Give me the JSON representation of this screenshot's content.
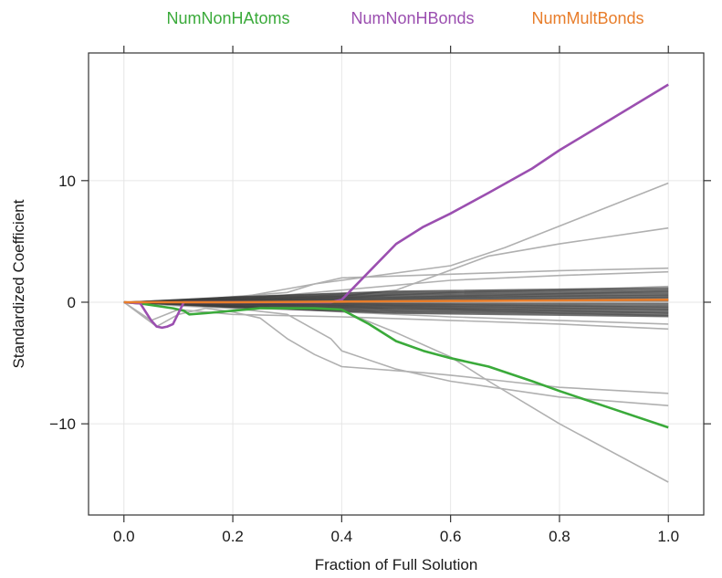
{
  "chart_data": {
    "type": "line",
    "title": "",
    "xlabel": "Fraction of Full Solution",
    "ylabel": "Standardized Coefficient",
    "xlim": [
      -0.065,
      1.065
    ],
    "ylim": [
      -17.5,
      20.5
    ],
    "xticks": [
      0.0,
      0.2,
      0.4,
      0.6,
      0.8,
      1.0
    ],
    "xtick_labels": [
      "0.0",
      "0.2",
      "0.4",
      "0.6",
      "0.8",
      "1.0"
    ],
    "yticks": [
      -10,
      0,
      10
    ],
    "ytick_labels": [
      "−10",
      "0",
      "10"
    ],
    "grid": true,
    "legend_position": "top",
    "highlighted_series": [
      {
        "name": "NumNonHAtoms",
        "color": "#3aaa3a",
        "x": [
          0.0,
          0.03,
          0.06,
          0.09,
          0.11,
          0.12,
          0.15,
          0.2,
          0.25,
          0.3,
          0.35,
          0.4,
          0.45,
          0.5,
          0.55,
          0.6,
          0.67,
          0.75,
          0.8,
          0.9,
          1.0
        ],
        "y": [
          0.0,
          -0.1,
          -0.3,
          -0.5,
          -0.7,
          -1.0,
          -0.9,
          -0.7,
          -0.5,
          -0.5,
          -0.5,
          -0.6,
          -1.8,
          -3.2,
          -4.0,
          -4.6,
          -5.3,
          -6.5,
          -7.3,
          -8.8,
          -10.3
        ]
      },
      {
        "name": "NumNonHBonds",
        "color": "#9b4fb0",
        "x": [
          0.0,
          0.03,
          0.05,
          0.06,
          0.07,
          0.08,
          0.09,
          0.11,
          0.2,
          0.3,
          0.38,
          0.4,
          0.45,
          0.5,
          0.55,
          0.6,
          0.67,
          0.75,
          0.8,
          0.9,
          1.0
        ],
        "y": [
          0.0,
          -0.1,
          -1.5,
          -2.0,
          -2.1,
          -2.0,
          -1.8,
          0.0,
          0.0,
          0.0,
          0.0,
          0.2,
          2.5,
          4.8,
          6.2,
          7.3,
          9.0,
          11.0,
          12.5,
          15.2,
          17.9
        ]
      },
      {
        "name": "NumMultBonds",
        "color": "#e87d2a",
        "x": [
          0.0,
          0.2,
          0.4,
          0.6,
          0.8,
          1.0
        ],
        "y": [
          0.0,
          0.0,
          0.05,
          0.1,
          0.15,
          0.2
        ]
      }
    ],
    "background_series_color": "#b0b0b0",
    "background_series": [
      {
        "x": [
          0.0,
          0.1,
          0.3,
          0.35,
          0.4,
          0.6,
          0.7,
          1.0
        ],
        "y": [
          0.0,
          0.1,
          0.8,
          1.5,
          1.8,
          3.0,
          4.5,
          9.8
        ]
      },
      {
        "x": [
          0.0,
          0.2,
          0.4,
          0.5,
          0.67,
          0.8,
          1.0
        ],
        "y": [
          0.0,
          0.2,
          0.5,
          1.0,
          3.8,
          4.8,
          6.1
        ]
      },
      {
        "x": [
          0.0,
          0.2,
          0.35,
          0.4,
          0.6,
          0.8,
          1.0
        ],
        "y": [
          0.0,
          0.3,
          1.5,
          2.0,
          2.3,
          2.6,
          2.8
        ]
      },
      {
        "x": [
          0.0,
          0.2,
          0.4,
          0.6,
          0.8,
          1.0
        ],
        "y": [
          0.0,
          0.2,
          1.0,
          1.8,
          2.2,
          2.5
        ]
      },
      {
        "x": [
          0.0,
          0.2,
          0.4,
          0.6,
          0.8,
          1.0
        ],
        "y": [
          0.0,
          0.1,
          0.4,
          0.8,
          1.0,
          1.3
        ]
      },
      {
        "x": [
          0.0,
          0.2,
          0.4,
          0.6,
          0.8,
          1.0
        ],
        "y": [
          0.0,
          0.1,
          0.3,
          0.5,
          0.7,
          0.9
        ]
      },
      {
        "x": [
          0.0,
          0.2,
          0.4,
          0.6,
          0.8,
          1.0
        ],
        "y": [
          0.0,
          0.05,
          0.2,
          0.35,
          0.5,
          0.6
        ]
      },
      {
        "x": [
          0.0,
          0.2,
          0.4,
          0.6,
          0.8,
          1.0
        ],
        "y": [
          0.0,
          0.05,
          0.1,
          0.2,
          0.3,
          0.4
        ]
      },
      {
        "x": [
          0.0,
          0.2,
          0.4,
          0.6,
          0.8,
          1.0
        ],
        "y": [
          0.0,
          -0.05,
          -0.1,
          -0.2,
          -0.3,
          -0.4
        ]
      },
      {
        "x": [
          0.0,
          0.2,
          0.4,
          0.6,
          0.8,
          1.0
        ],
        "y": [
          0.0,
          -0.05,
          -0.2,
          -0.35,
          -0.5,
          -0.6
        ]
      },
      {
        "x": [
          0.0,
          0.2,
          0.4,
          0.6,
          0.8,
          1.0
        ],
        "y": [
          0.0,
          -0.1,
          -0.3,
          -0.5,
          -0.7,
          -0.9
        ]
      },
      {
        "x": [
          0.0,
          0.2,
          0.4,
          0.6,
          0.8,
          1.0
        ],
        "y": [
          0.0,
          -0.1,
          -0.4,
          -0.6,
          -0.9,
          -1.1
        ]
      },
      {
        "x": [
          0.0,
          0.2,
          0.4,
          0.6,
          0.8,
          1.0
        ],
        "y": [
          0.0,
          -0.3,
          -0.8,
          -1.2,
          -1.5,
          -1.8
        ]
      },
      {
        "x": [
          0.0,
          0.05,
          0.1,
          0.2,
          0.4,
          0.6,
          0.8,
          1.0
        ],
        "y": [
          0.0,
          -1.5,
          -0.6,
          -1.0,
          -1.2,
          -1.5,
          -1.8,
          -2.2
        ]
      },
      {
        "x": [
          0.0,
          0.03,
          0.06,
          0.1,
          0.15,
          0.2,
          0.25,
          0.3,
          0.35,
          0.4,
          0.55,
          0.6,
          0.7,
          0.8,
          1.0
        ],
        "y": [
          0.0,
          -1.0,
          -2.0,
          -1.0,
          -0.5,
          -0.8,
          -1.3,
          -3.0,
          -4.3,
          -5.3,
          -5.8,
          -6.0,
          -6.5,
          -7.0,
          -7.5
        ]
      },
      {
        "x": [
          0.0,
          0.1,
          0.2,
          0.3,
          0.38,
          0.4,
          0.5,
          0.6,
          0.8,
          1.0
        ],
        "y": [
          0.0,
          -0.3,
          -0.5,
          -1.0,
          -3.0,
          -4.0,
          -5.5,
          -6.5,
          -7.8,
          -8.5
        ]
      },
      {
        "x": [
          0.0,
          0.1,
          0.2,
          0.35,
          0.4,
          0.5,
          0.6,
          0.67,
          0.8,
          1.0
        ],
        "y": [
          0.0,
          -0.2,
          -0.4,
          -0.6,
          -0.7,
          -2.5,
          -4.5,
          -6.5,
          -10.0,
          -14.8
        ]
      }
    ]
  }
}
